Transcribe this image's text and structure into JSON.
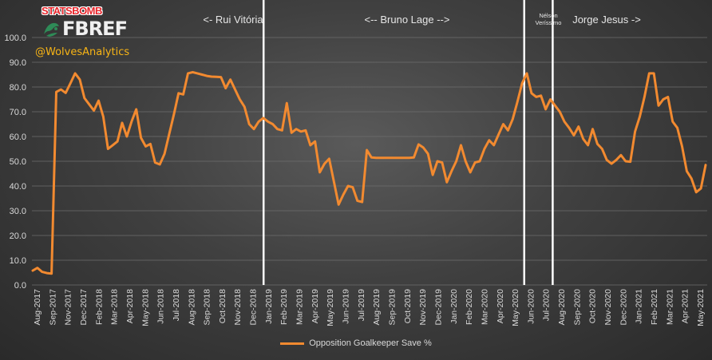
{
  "branding": {
    "statsbomb": "STATSBOMB",
    "fbref": "FBREF",
    "handle": "@WolvesAnalytics"
  },
  "chart_data": {
    "type": "line",
    "ylim": [
      0,
      100
    ],
    "yticks": [
      "0.0",
      "10.0",
      "20.0",
      "30.0",
      "40.0",
      "50.0",
      "60.0",
      "70.0",
      "80.0",
      "90.0",
      "100.0"
    ],
    "xticks": [
      "Aug-2017",
      "Sep-2017",
      "Nov-2017",
      "Dec-2017",
      "Feb-2018",
      "Mar-2018",
      "Apr-2018",
      "May-2018",
      "Jun-2018",
      "Jul-2018",
      "Aug-2018",
      "Sep-2018",
      "Oct-2018",
      "Nov-2018",
      "Dec-2018",
      "Jan-2019",
      "Feb-2019",
      "Mar-2019",
      "Apr-2019",
      "May-2019",
      "Jun-2019",
      "Jul-2019",
      "Aug-2019",
      "Sep-2019",
      "Oct-2019",
      "Nov-2019",
      "Dec-2019",
      "Jan-2020",
      "Feb-2020",
      "Mar-2020",
      "Apr-2020",
      "May-2020",
      "Jun-2020",
      "Jul-2020",
      "Aug-2020",
      "Sep-2020",
      "Oct-2020",
      "Nov-2020",
      "Dec-2020",
      "Jan-2021",
      "Feb-2021",
      "Mar-2021",
      "Apr-2021",
      "May-2021"
    ],
    "grid": true,
    "legend_position": "bottom",
    "series": [
      {
        "name": "Opposition Goalkeeper Save %",
        "color": "#f28a30",
        "values": [
          5.8,
          6.9,
          5.3,
          4.8,
          4.6,
          78,
          79,
          77.6,
          81.5,
          85.5,
          83,
          75.5,
          73,
          70.5,
          74.5,
          68,
          55,
          56.5,
          58,
          65.5,
          60,
          66,
          71,
          59.5,
          56,
          57,
          49.5,
          48.7,
          53,
          61,
          69,
          77.5,
          77,
          85.5,
          86,
          85.5,
          85,
          84.5,
          84.2,
          84.1,
          84,
          79.5,
          83,
          79,
          75,
          72,
          65,
          63,
          66,
          67.5,
          66,
          65,
          63,
          62.5,
          73.5,
          61.5,
          63,
          62,
          62.5,
          56.5,
          58,
          45.5,
          49,
          51,
          41.8,
          32.5,
          36.5,
          40,
          39.5,
          34,
          33.5,
          54.5,
          51.5,
          51.4,
          51.4,
          51.4,
          51.4,
          51.4,
          51.4,
          51.4,
          51.4,
          51.5,
          56.8,
          55.5,
          53,
          44.5,
          50,
          49.5,
          41.5,
          46,
          50,
          56.5,
          50,
          45.5,
          49.5,
          50,
          55,
          58.5,
          56.5,
          60.8,
          65,
          62.5,
          67,
          74,
          81.5,
          85.5,
          77.5,
          76,
          76.5,
          71,
          75,
          72.5,
          70,
          66,
          63.5,
          60.5,
          64,
          59,
          56.5,
          63,
          57,
          55,
          50.5,
          49,
          50.5,
          52.5,
          50,
          49.8,
          62,
          68,
          76,
          85.5,
          85.5,
          72.5,
          75,
          76,
          66,
          63.5,
          56,
          46,
          43,
          37.5,
          39,
          48.5
        ]
      }
    ],
    "annotations": [
      {
        "label": "<- Rui Vitória"
      },
      {
        "label": "<-- Bruno Lage -->"
      },
      {
        "label": "Nélson Veríssimo"
      },
      {
        "label": "Jorge Jesus ->"
      }
    ]
  }
}
